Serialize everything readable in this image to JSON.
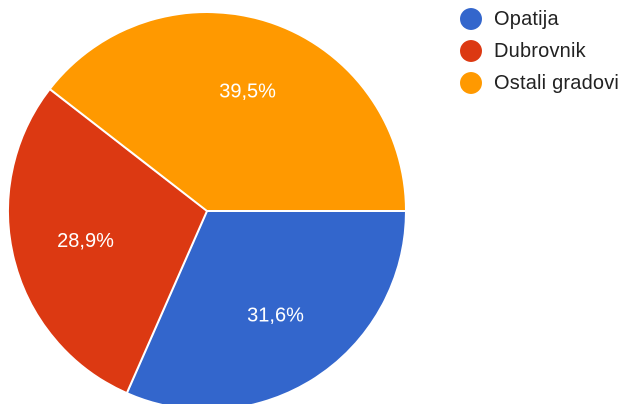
{
  "chart_data": {
    "type": "pie",
    "title": "",
    "legend_position": "top-right",
    "start_angle_deg": 90,
    "direction": "clockwise",
    "slices": [
      {
        "label": "Opatija",
        "value": 31.6,
        "display": "31,6%",
        "color": "#3366CC"
      },
      {
        "label": "Dubrovnik",
        "value": 28.9,
        "display": "28,9%",
        "color": "#DC3912"
      },
      {
        "label": "Ostali gradovi",
        "value": 39.5,
        "display": "39,5%",
        "color": "#FF9900"
      }
    ]
  }
}
